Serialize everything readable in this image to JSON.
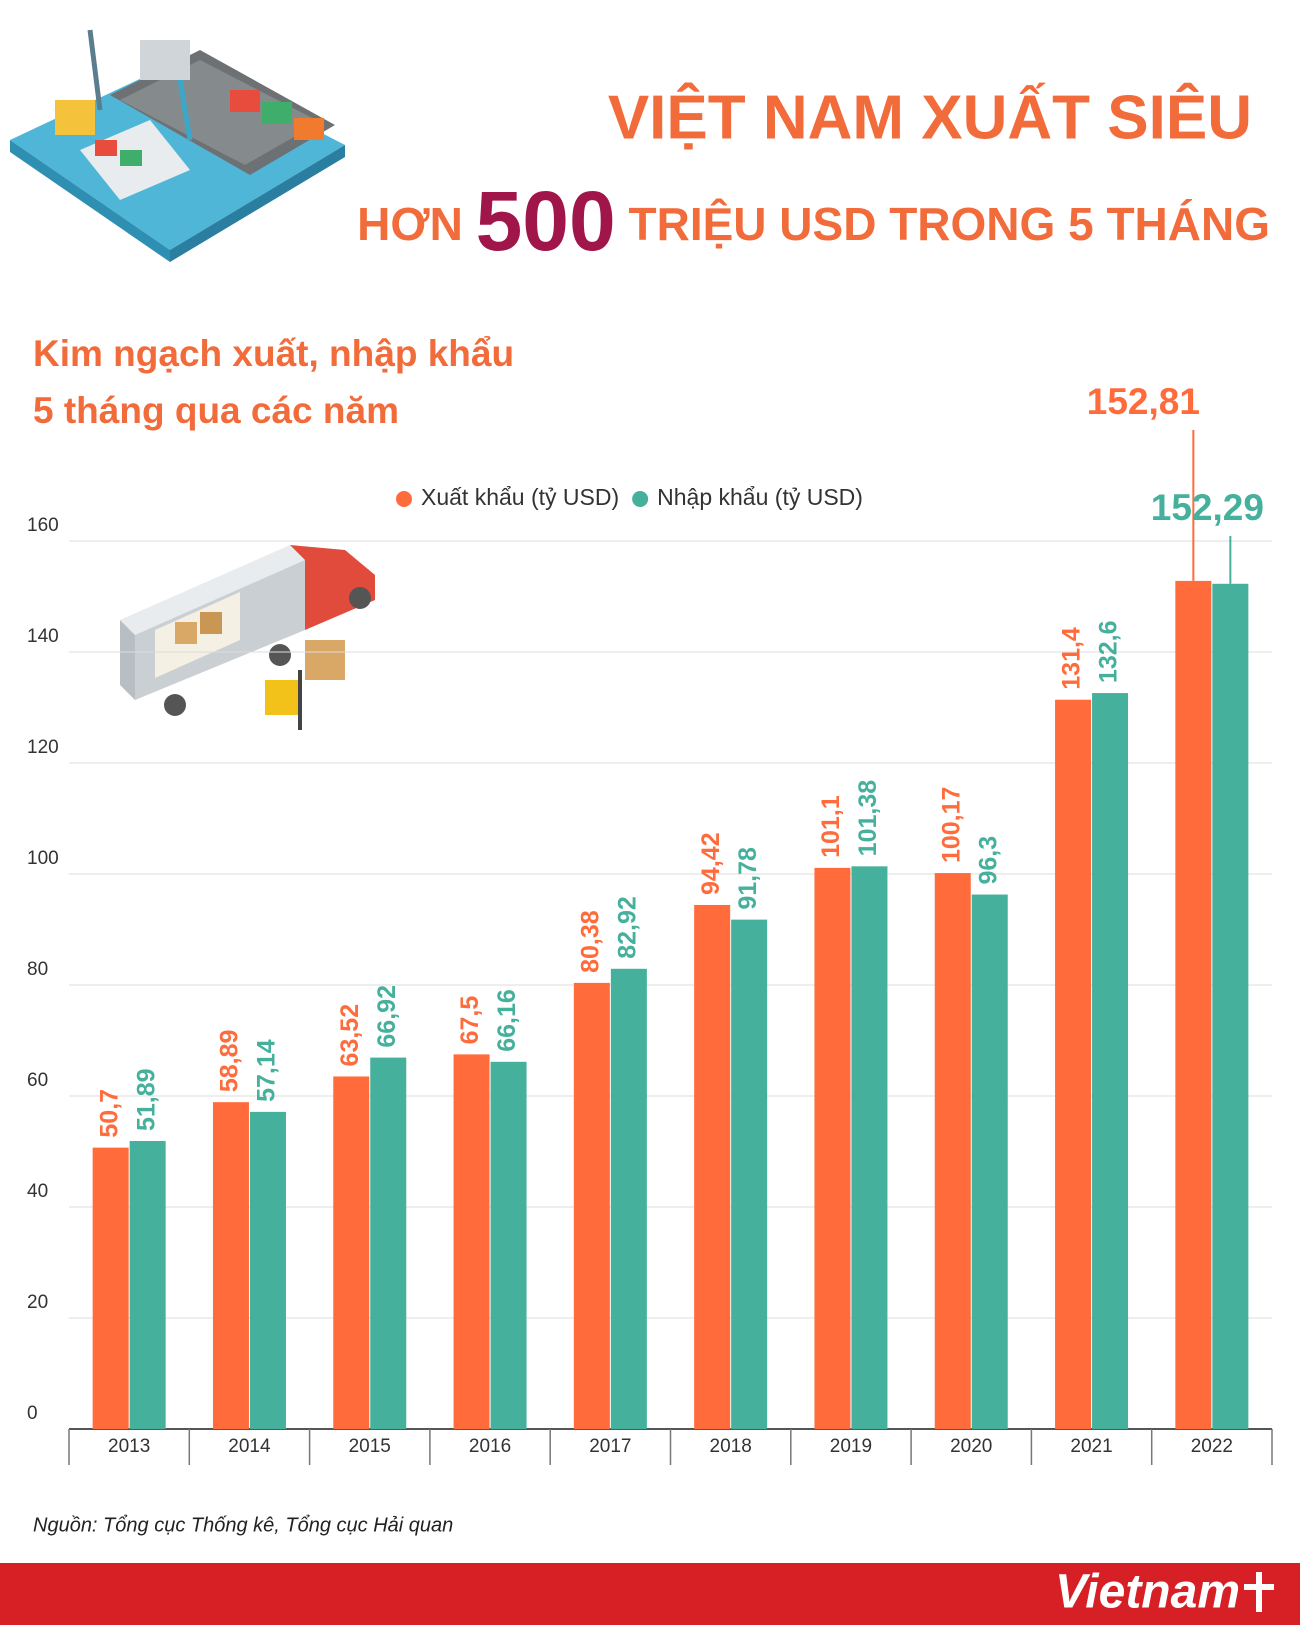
{
  "headline": {
    "line1": "VIỆT NAM XUẤT SIÊU",
    "line2": [
      "HƠN",
      "500",
      "TRIỆU USD TRONG 5 THÁNG"
    ]
  },
  "chart_data": {
    "type": "bar",
    "title_lines": [
      "Kim ngạch xuất, nhập khẩu",
      "5 tháng qua các năm"
    ],
    "categories": [
      "2013",
      "2014",
      "2015",
      "2016",
      "2017",
      "2018",
      "2019",
      "2020",
      "2021",
      "2022"
    ],
    "series": [
      {
        "name": "Xuất khẩu (tỷ USD)",
        "color": "#ff6b3b",
        "values": [
          50.7,
          58.89,
          63.52,
          67.5,
          80.38,
          94.42,
          101.1,
          100.17,
          131.4,
          152.81
        ],
        "value_labels": [
          "50,7",
          "58,89",
          "63,52",
          "67,5",
          "80,38",
          "94,42",
          "101,1",
          "100,17",
          "131,4",
          "152,81"
        ]
      },
      {
        "name": "Nhập khẩu (tỷ USD)",
        "color": "#45b09b",
        "values": [
          51.89,
          57.14,
          66.92,
          66.16,
          82.92,
          91.78,
          101.38,
          96.3,
          132.6,
          152.29
        ],
        "value_labels": [
          "51,89",
          "57,14",
          "66,92",
          "66,16",
          "82,92",
          "91,78",
          "101,38",
          "96,3",
          "132,6",
          "152,29"
        ]
      }
    ],
    "ylim": [
      0,
      160
    ],
    "yticks": [
      0,
      20,
      40,
      60,
      80,
      100,
      120,
      140,
      160
    ],
    "grid": true,
    "legend": "top"
  },
  "source": "Nguồn: Tổng cục Thống kê, Tổng cục Hải quan",
  "footer": {
    "logo": "Vietnam"
  }
}
